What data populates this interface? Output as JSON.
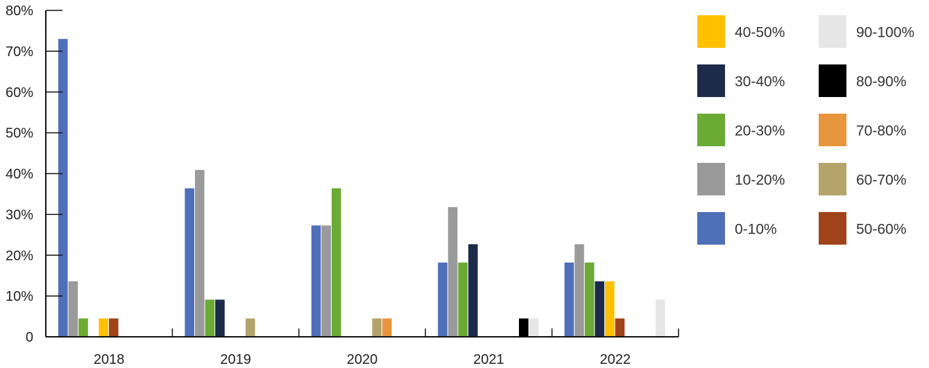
{
  "chart_data": {
    "type": "bar",
    "title": "",
    "xlabel": "",
    "ylabel": "",
    "ylim": [
      0,
      80
    ],
    "y_ticks": [
      "0",
      "10%",
      "20%",
      "30%",
      "40%",
      "50%",
      "60%",
      "70%",
      "80%"
    ],
    "categories": [
      "2018",
      "2019",
      "2020",
      "2021",
      "2022"
    ],
    "grid": false,
    "legend_position": "right",
    "series": [
      {
        "name": "0-10%",
        "color": "#4f6fb8",
        "values": [
          73,
          36.4,
          27.3,
          18.2,
          18.2
        ]
      },
      {
        "name": "10-20%",
        "color": "#9a9a9a",
        "values": [
          13.6,
          40.9,
          27.3,
          31.8,
          22.7
        ]
      },
      {
        "name": "20-30%",
        "color": "#6aaa35",
        "values": [
          4.5,
          9.1,
          36.4,
          18.2,
          18.2
        ]
      },
      {
        "name": "30-40%",
        "color": "#1c2b4a",
        "values": [
          0,
          9.1,
          0,
          22.7,
          13.6
        ]
      },
      {
        "name": "40-50%",
        "color": "#ffc000",
        "values": [
          4.5,
          0,
          0,
          0,
          13.6
        ]
      },
      {
        "name": "50-60%",
        "color": "#a0431a",
        "values": [
          4.5,
          0,
          0,
          0,
          4.5
        ]
      },
      {
        "name": "60-70%",
        "color": "#b5a46a",
        "values": [
          0,
          4.5,
          4.5,
          0,
          0
        ]
      },
      {
        "name": "70-80%",
        "color": "#e8963e",
        "values": [
          0,
          0,
          4.5,
          0,
          0
        ]
      },
      {
        "name": "80-90%",
        "color": "#000000",
        "values": [
          0,
          0,
          0,
          4.5,
          0
        ]
      },
      {
        "name": "90-100%",
        "color": "#e6e6e6",
        "values": [
          0,
          0,
          0,
          4.5,
          9.1
        ]
      }
    ],
    "legend_columns": [
      [
        "40-50%",
        "30-40%",
        "20-30%",
        "10-20%",
        "0-10%"
      ],
      [
        "90-100%",
        "80-90%",
        "70-80%",
        "60-70%",
        "50-60%"
      ]
    ]
  }
}
